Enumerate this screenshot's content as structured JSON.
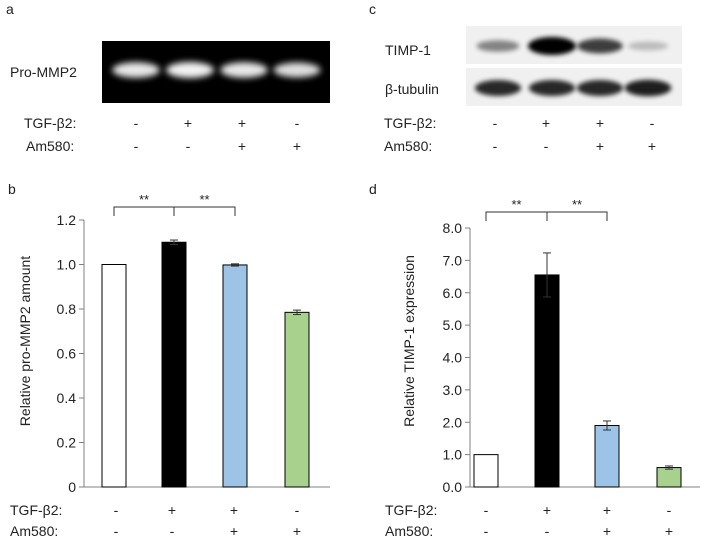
{
  "panels": {
    "a": {
      "letter": "a"
    },
    "b": {
      "letter": "b"
    },
    "c": {
      "letter": "c"
    },
    "d": {
      "letter": "d"
    }
  },
  "blot_a": {
    "band_label": "Pro-MMP2",
    "band_intensity": [
      0.92,
      1.0,
      0.9,
      0.82
    ]
  },
  "blot_c": {
    "rows": [
      {
        "label": "TIMP-1",
        "intensity": [
          0.35,
          1.0,
          0.7,
          0.08
        ]
      },
      {
        "label": "β-tubulin",
        "intensity": [
          0.8,
          0.8,
          0.8,
          0.85
        ]
      }
    ]
  },
  "conditions": {
    "row1_label": "TGF-β2:",
    "row2_label": "Am580:",
    "tgf": [
      "-",
      "+",
      "+",
      "-"
    ],
    "am580": [
      "-",
      "-",
      "+",
      "+"
    ]
  },
  "significance_marker": "**",
  "colors": {
    "bar_fills": [
      "#ffffff",
      "#000000",
      "#9dc3e6",
      "#a9d18e"
    ],
    "bar_stroke": "#000000",
    "axis": "#808080",
    "blot_bg_a": "#000000",
    "blot_band_a": "#f2f2f2",
    "blot_bg_c": "#f0f0f0",
    "blot_band_c": "#000000"
  },
  "chart_data": [
    {
      "type": "bar",
      "panel": "b",
      "categories": [
        "-/-",
        "+/-",
        "+/+",
        "-/+"
      ],
      "values": [
        1.0,
        1.1,
        0.998,
        0.785
      ],
      "errors": [
        0.0,
        0.01,
        0.005,
        0.01
      ],
      "ylabel": "Relative pro-MMP2 amount",
      "ylim": [
        0,
        1.2
      ],
      "yticks": [
        "0",
        "0.2",
        "0.4",
        "0.6",
        "0.8",
        "1.0",
        "1.2"
      ],
      "significance": [
        [
          0,
          1,
          "**"
        ],
        [
          1,
          2,
          "**"
        ]
      ]
    },
    {
      "type": "bar",
      "panel": "d",
      "categories": [
        "-/-",
        "+/-",
        "+/+",
        "-/+"
      ],
      "values": [
        1.0,
        6.55,
        1.9,
        0.6
      ],
      "errors": [
        0.0,
        0.68,
        0.14,
        0.05
      ],
      "ylabel": "Relative TIMP-1 expression",
      "ylim": [
        0,
        8
      ],
      "yticks": [
        "0.0",
        "1.0",
        "2.0",
        "3.0",
        "4.0",
        "5.0",
        "6.0",
        "7.0",
        "8.0"
      ],
      "significance": [
        [
          0,
          1,
          "**"
        ],
        [
          1,
          2,
          "**"
        ]
      ]
    }
  ]
}
